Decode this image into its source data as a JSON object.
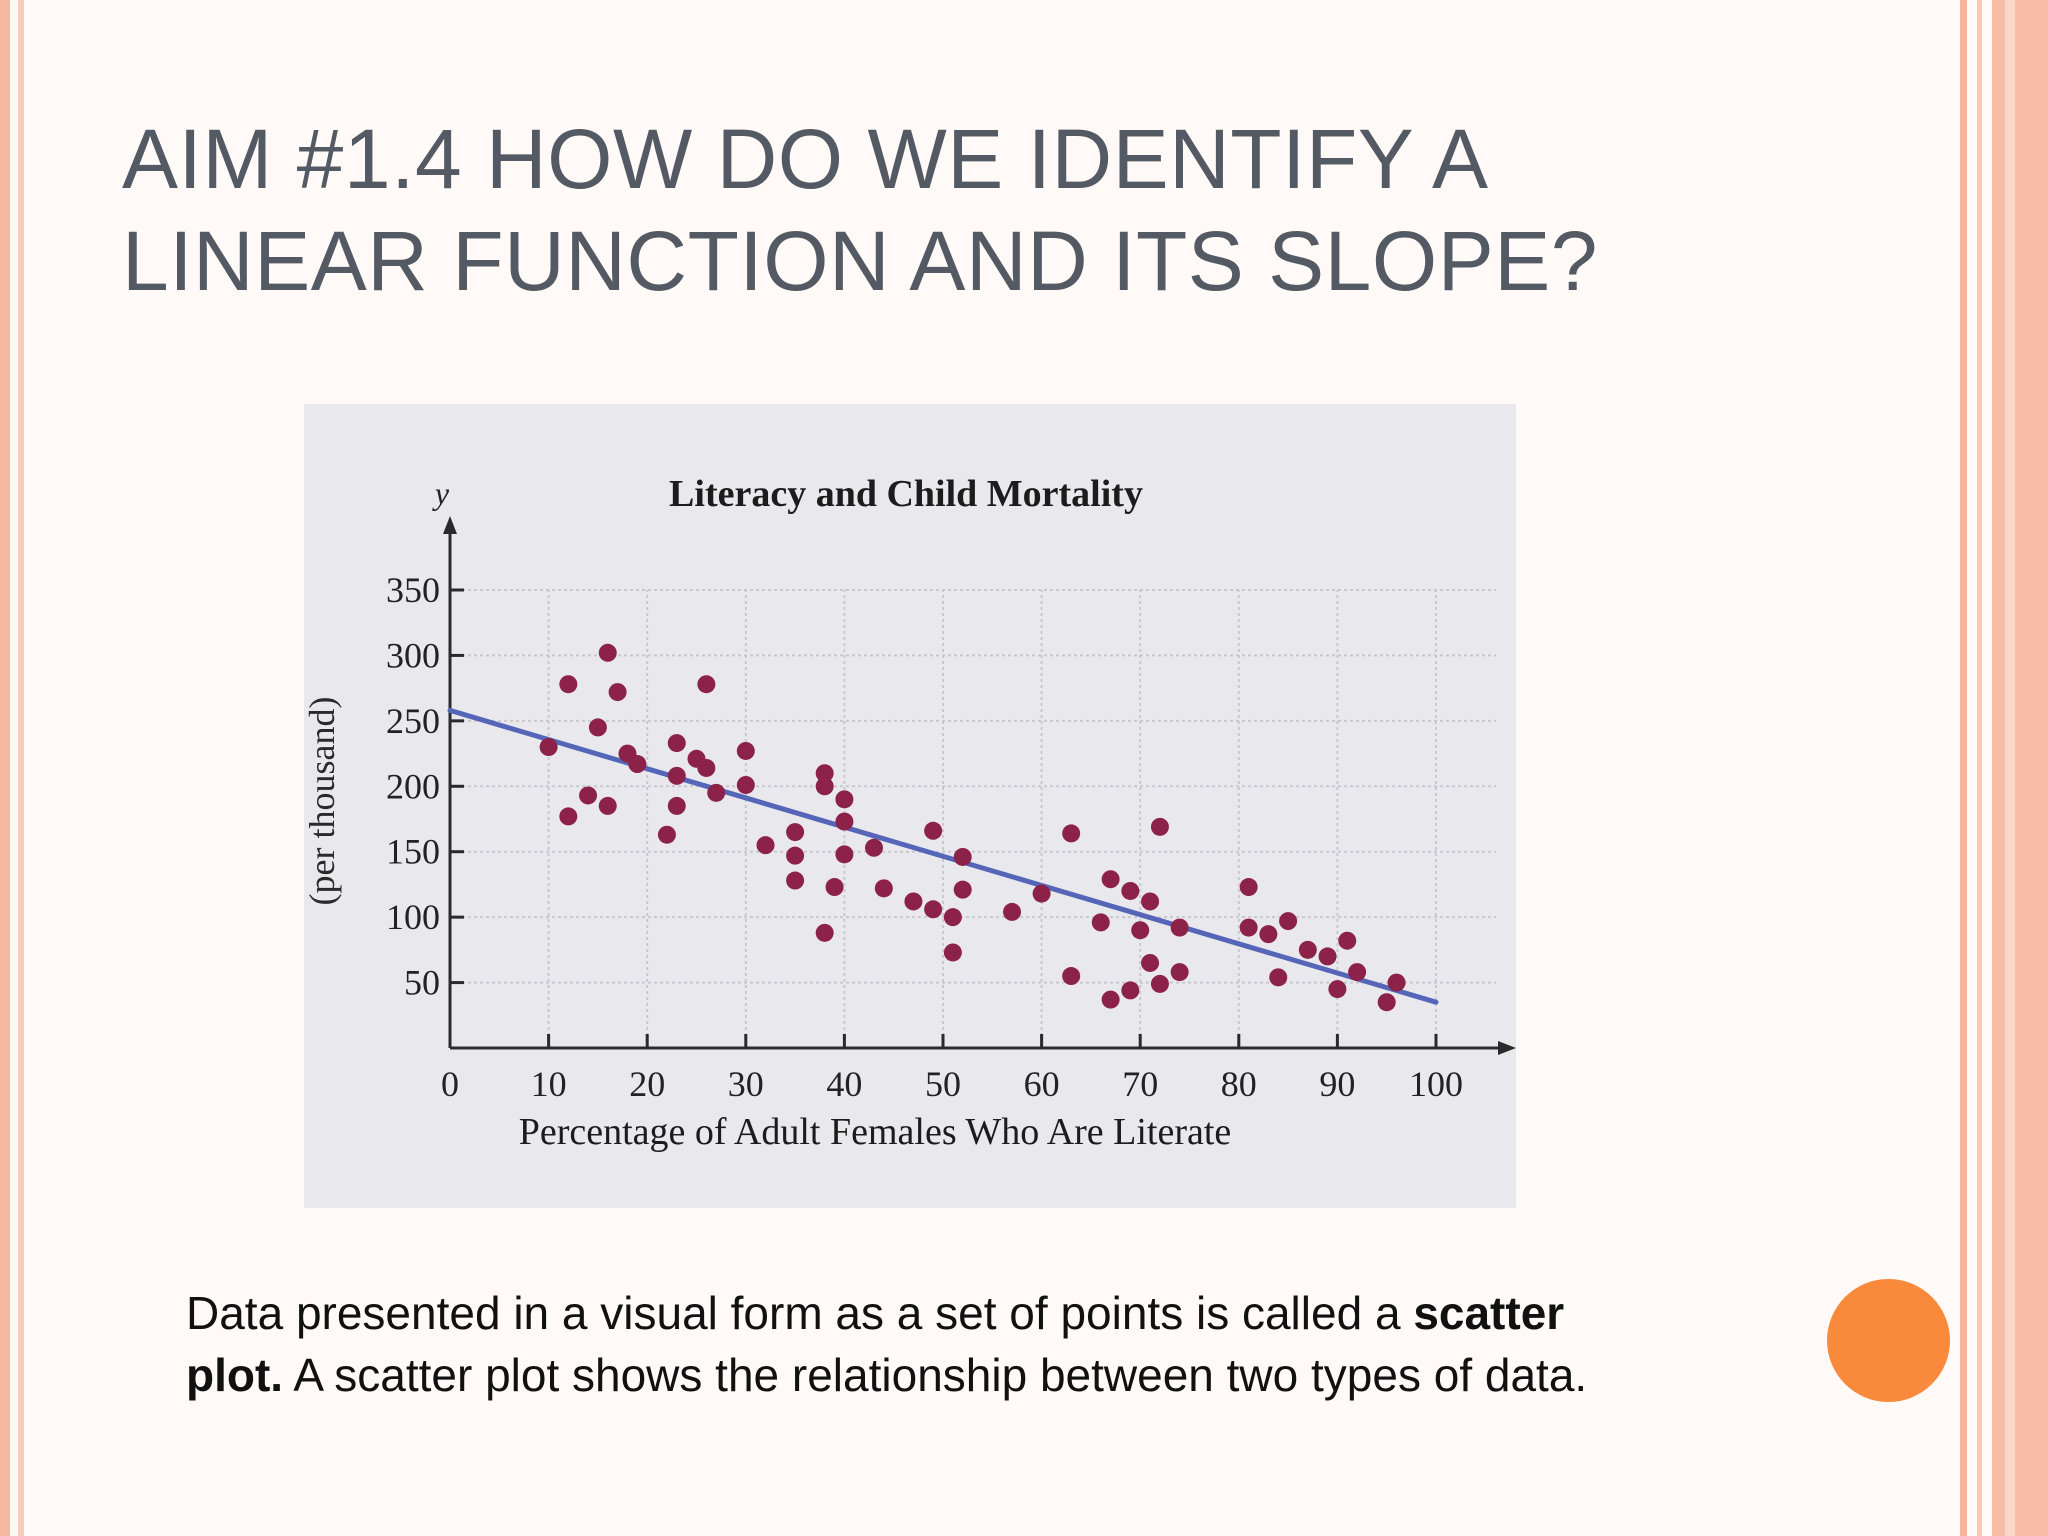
{
  "slide": {
    "title": "AIM #1.4 HOW DO WE IDENTIFY A LINEAR FUNCTION AND ITS SLOPE?",
    "body_part1": "Data presented in a visual form as a set of points is called a ",
    "body_bold": "scatter plot.",
    "body_part2": " A scatter plot shows the relationship between two types of data.",
    "accent_color": "#f98a3c",
    "title_color": "#545a64"
  },
  "chart_data": {
    "type": "scatter",
    "title": "Literacy and Child Mortality",
    "xlabel": "Percentage of Adult Females Who Are Literate",
    "ylabel": "(per thousand)",
    "y_axis_letter": "y",
    "xlim": [
      0,
      100
    ],
    "ylim": [
      0,
      350
    ],
    "x_ticks": [
      0,
      10,
      20,
      30,
      40,
      50,
      60,
      70,
      80,
      90,
      100
    ],
    "y_ticks": [
      50,
      100,
      150,
      200,
      250,
      300,
      350
    ],
    "grid": true,
    "point_color": "#8c2248",
    "trend_line": {
      "color": "#5566b8",
      "x": [
        0,
        100
      ],
      "y": [
        258,
        35
      ]
    },
    "points": [
      {
        "x": 10,
        "y": 230
      },
      {
        "x": 12,
        "y": 278
      },
      {
        "x": 12,
        "y": 177
      },
      {
        "x": 14,
        "y": 193
      },
      {
        "x": 15,
        "y": 245
      },
      {
        "x": 16,
        "y": 302
      },
      {
        "x": 16,
        "y": 185
      },
      {
        "x": 17,
        "y": 272
      },
      {
        "x": 18,
        "y": 225
      },
      {
        "x": 19,
        "y": 217
      },
      {
        "x": 22,
        "y": 163
      },
      {
        "x": 23,
        "y": 185
      },
      {
        "x": 23,
        "y": 208
      },
      {
        "x": 23,
        "y": 233
      },
      {
        "x": 25,
        "y": 221
      },
      {
        "x": 26,
        "y": 278
      },
      {
        "x": 26,
        "y": 214
      },
      {
        "x": 27,
        "y": 195
      },
      {
        "x": 30,
        "y": 227
      },
      {
        "x": 30,
        "y": 201
      },
      {
        "x": 32,
        "y": 155
      },
      {
        "x": 35,
        "y": 165
      },
      {
        "x": 35,
        "y": 147
      },
      {
        "x": 35,
        "y": 128
      },
      {
        "x": 38,
        "y": 210
      },
      {
        "x": 38,
        "y": 200
      },
      {
        "x": 38,
        "y": 88
      },
      {
        "x": 39,
        "y": 123
      },
      {
        "x": 40,
        "y": 190
      },
      {
        "x": 40,
        "y": 173
      },
      {
        "x": 40,
        "y": 148
      },
      {
        "x": 43,
        "y": 153
      },
      {
        "x": 44,
        "y": 122
      },
      {
        "x": 47,
        "y": 112
      },
      {
        "x": 49,
        "y": 166
      },
      {
        "x": 49,
        "y": 106
      },
      {
        "x": 51,
        "y": 100
      },
      {
        "x": 51,
        "y": 73
      },
      {
        "x": 52,
        "y": 146
      },
      {
        "x": 52,
        "y": 121
      },
      {
        "x": 57,
        "y": 104
      },
      {
        "x": 60,
        "y": 118
      },
      {
        "x": 63,
        "y": 164
      },
      {
        "x": 63,
        "y": 55
      },
      {
        "x": 66,
        "y": 96
      },
      {
        "x": 67,
        "y": 129
      },
      {
        "x": 67,
        "y": 37
      },
      {
        "x": 69,
        "y": 44
      },
      {
        "x": 69,
        "y": 120
      },
      {
        "x": 70,
        "y": 90
      },
      {
        "x": 71,
        "y": 112
      },
      {
        "x": 71,
        "y": 65
      },
      {
        "x": 72,
        "y": 49
      },
      {
        "x": 72,
        "y": 169
      },
      {
        "x": 74,
        "y": 58
      },
      {
        "x": 74,
        "y": 92
      },
      {
        "x": 81,
        "y": 123
      },
      {
        "x": 81,
        "y": 92
      },
      {
        "x": 83,
        "y": 87
      },
      {
        "x": 84,
        "y": 54
      },
      {
        "x": 85,
        "y": 97
      },
      {
        "x": 87,
        "y": 75
      },
      {
        "x": 89,
        "y": 70
      },
      {
        "x": 90,
        "y": 45
      },
      {
        "x": 91,
        "y": 82
      },
      {
        "x": 92,
        "y": 58
      },
      {
        "x": 95,
        "y": 35
      },
      {
        "x": 96,
        "y": 50
      }
    ]
  }
}
